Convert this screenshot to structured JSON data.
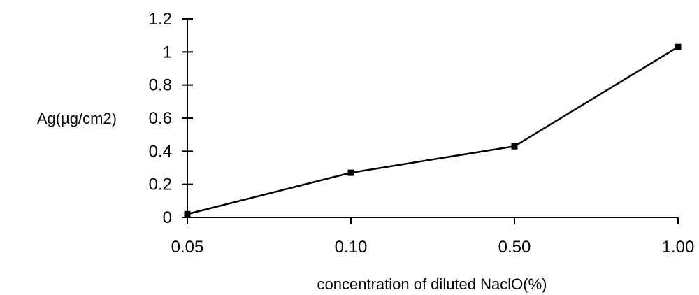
{
  "chart_data": {
    "type": "line",
    "title": "",
    "xlabel": "concentration of diluted NaclO(%)",
    "ylabel": "Ag(µg/cm2)",
    "categories": [
      "0.05",
      "0.10",
      "0.50",
      "1.00"
    ],
    "y_ticks": [
      "0",
      "0.2",
      "0.4",
      "0.6",
      "0.8",
      "1",
      "1.2"
    ],
    "ylim": [
      0,
      1.2
    ],
    "grid": false,
    "legend": "none",
    "series": [
      {
        "values": [
          0.02,
          0.27,
          0.43,
          1.03
        ],
        "color": "#000000",
        "marker": "square"
      }
    ]
  }
}
